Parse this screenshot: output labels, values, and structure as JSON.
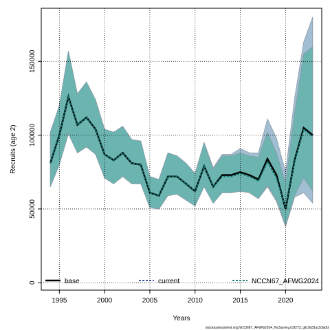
{
  "chart_data": {
    "type": "line",
    "xlabel": "Years",
    "ylabel": "Recruits (age 2)",
    "xlim": [
      1993,
      2024
    ],
    "ylim": [
      -5000,
      186000
    ],
    "x_ticks": [
      1995,
      2000,
      2005,
      2010,
      2015,
      2020
    ],
    "y_ticks": [
      0,
      50000,
      100000,
      150000
    ],
    "grid": true,
    "legend_position": "bottom",
    "x": [
      1994,
      1995,
      1996,
      1997,
      1998,
      1999,
      2000,
      2001,
      2002,
      2003,
      2004,
      2005,
      2006,
      2007,
      2008,
      2009,
      2010,
      2011,
      2012,
      2013,
      2014,
      2015,
      2016,
      2017,
      2018,
      2019,
      2020,
      2021,
      2022,
      2023
    ],
    "series": [
      {
        "name": "base",
        "color": "#000000",
        "style": "solid",
        "values": [
          81000,
          100000,
          126000,
          107000,
          112000,
          104000,
          87000,
          83000,
          88000,
          81000,
          80000,
          61000,
          59000,
          72000,
          72000,
          67000,
          62000,
          79000,
          65000,
          73000,
          73000,
          75000,
          73000,
          70000,
          84000,
          73000,
          50000,
          83000,
          105000,
          100000
        ]
      },
      {
        "name": "current",
        "color": "#1f3f8f",
        "style": "dashed",
        "values": [
          81000,
          100000,
          126000,
          107000,
          112000,
          104000,
          87000,
          83000,
          88000,
          81000,
          80000,
          61000,
          59000,
          72000,
          72000,
          67000,
          62000,
          79000,
          65000,
          72000,
          72000,
          74000,
          72000,
          69000,
          82000,
          71000,
          51000,
          82000,
          104000,
          99000
        ]
      },
      {
        "name": "NCCN67_AFWG2024",
        "color": "#0a7a6a",
        "style": "dashed",
        "values": [
          81000,
          100000,
          126000,
          107000,
          112000,
          104000,
          87000,
          83000,
          88000,
          81000,
          80000,
          61000,
          59000,
          72000,
          72000,
          67000,
          62000,
          79000,
          65000,
          72000,
          72000,
          74000,
          72000,
          69000,
          82000,
          71000,
          51000,
          82000,
          104000,
          99000
        ]
      }
    ],
    "bands": [
      {
        "name": "current",
        "color": "#a2bed2",
        "lower": [
          65000,
          80000,
          101000,
          88000,
          92000,
          87000,
          71000,
          67000,
          72000,
          67000,
          67000,
          51000,
          50000,
          59000,
          60000,
          56000,
          52000,
          65000,
          54000,
          61000,
          61000,
          62000,
          61000,
          57000,
          65000,
          55000,
          38000,
          58000,
          61000,
          54000
        ],
        "upper": [
          102000,
          120000,
          157000,
          128000,
          136000,
          124000,
          104000,
          102000,
          106000,
          97000,
          96000,
          72000,
          70000,
          88000,
          86000,
          81000,
          74000,
          95000,
          78000,
          87000,
          87000,
          91000,
          88000,
          88000,
          111000,
          98000,
          75000,
          125000,
          163000,
          180000
        ]
      },
      {
        "name": "NCCN67_AFWG2024",
        "color": "#6bb4b0",
        "lower": [
          65000,
          80000,
          101000,
          88000,
          92000,
          87000,
          71000,
          67000,
          72000,
          67000,
          67000,
          51000,
          50000,
          59000,
          60000,
          56000,
          52000,
          65000,
          54000,
          61000,
          61000,
          62000,
          61000,
          57000,
          66000,
          56000,
          39000,
          59000,
          71000,
          62000
        ],
        "upper": [
          102000,
          120000,
          157000,
          128000,
          136000,
          124000,
          104000,
          102000,
          106000,
          97000,
          96000,
          72000,
          70000,
          88000,
          86000,
          81000,
          74000,
          95000,
          77000,
          86000,
          86000,
          88000,
          86000,
          85000,
          102000,
          88000,
          68000,
          115000,
          155000,
          160000
        ]
      }
    ],
    "footer": "stockassessment.org,NCCN67_AFWG2024_NoSurvey,r18273, gitc9c81ac53a0d"
  }
}
